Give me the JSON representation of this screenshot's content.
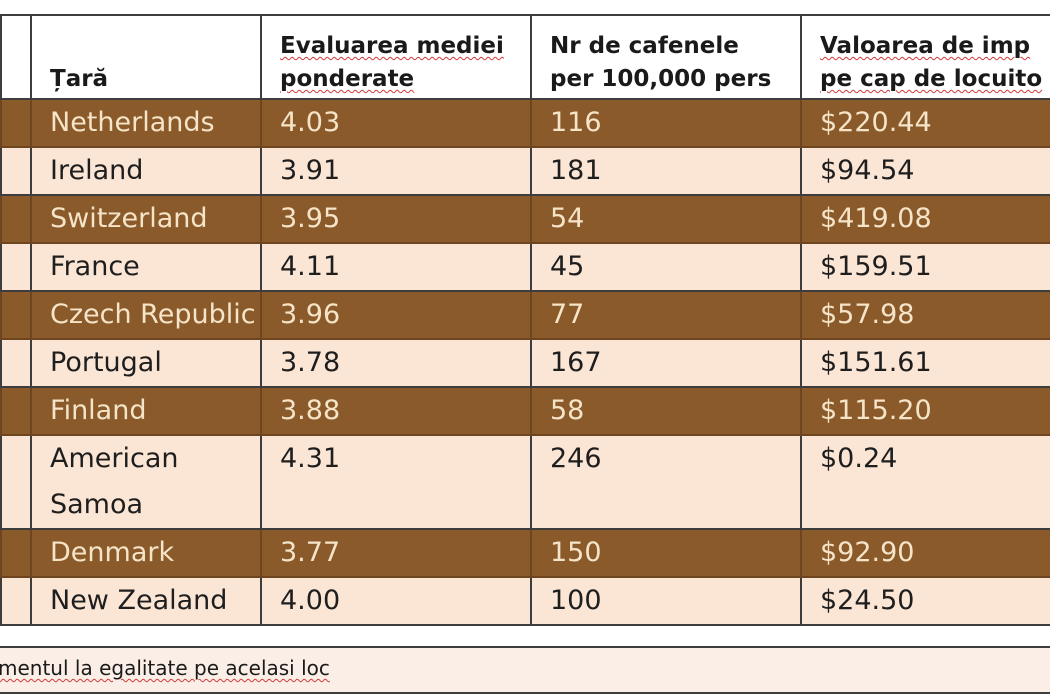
{
  "table": {
    "headers": {
      "country": "Țară",
      "rating_line1": "Evaluarea mediei",
      "rating_line2": "ponderate",
      "cafes_line1": "Nr de cafenele",
      "cafes_line2": "per 100,000 pers",
      "imports_line1": "Valoarea de imp",
      "imports_line2": "pe cap de locuito"
    },
    "rows": [
      {
        "country": "Netherlands",
        "rating": "4.03",
        "cafes": "116",
        "imports": "$220.44"
      },
      {
        "country": "Ireland",
        "rating": "3.91",
        "cafes": "181",
        "imports": "$94.54"
      },
      {
        "country": "Switzerland",
        "rating": "3.95",
        "cafes": "54",
        "imports": "$419.08"
      },
      {
        "country": "France",
        "rating": "4.11",
        "cafes": "45",
        "imports": "$159.51"
      },
      {
        "country": "Czech Republic",
        "rating": "3.96",
        "cafes": "77",
        "imports": "$57.98"
      },
      {
        "country": "Portugal",
        "rating": "3.78",
        "cafes": "167",
        "imports": "$151.61"
      },
      {
        "country": "Finland",
        "rating": "3.88",
        "cafes": "58",
        "imports": "$115.20"
      },
      {
        "country": "American Samoa",
        "rating": "4.31",
        "cafes": "246",
        "imports": "$0.24"
      },
      {
        "country": "Denmark",
        "rating": "3.77",
        "cafes": "150",
        "imports": "$92.90"
      },
      {
        "country": "New Zealand",
        "rating": "4.00",
        "cafes": "100",
        "imports": "$24.50"
      }
    ]
  },
  "footnote": "mentul la egalitate pe acelasi loc",
  "colors": {
    "dark_row": "#8a5a2b",
    "light_row": "#fbe6d6",
    "dark_row_text": "#f5e4c8"
  }
}
